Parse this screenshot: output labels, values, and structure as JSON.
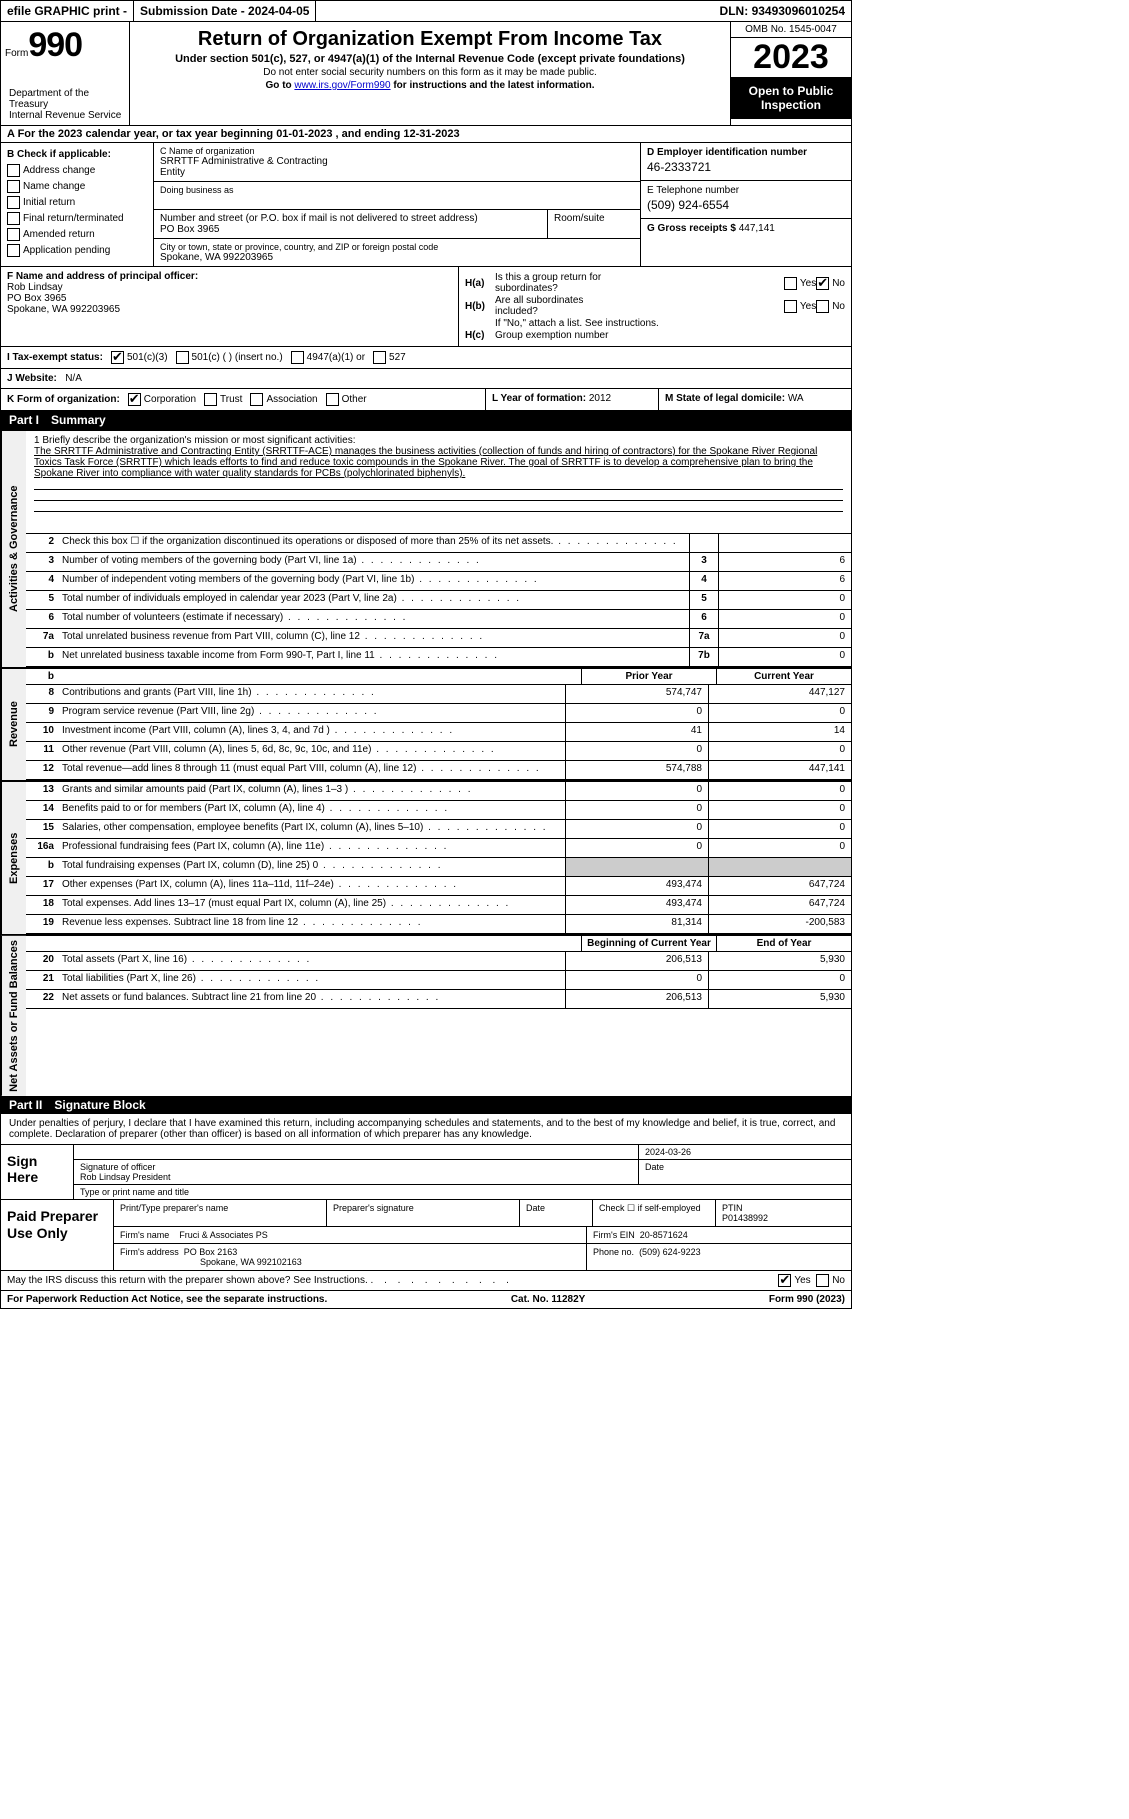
{
  "topbar": {
    "efile": "efile GRAPHIC print -",
    "submission_label": "Submission Date -",
    "submission_date": "2024-04-05",
    "dln_label": "DLN:",
    "dln": "93493096010254"
  },
  "header": {
    "form_prefix": "Form",
    "form_num": "990",
    "title": "Return of Organization Exempt From Income Tax",
    "subtitle": "Under section 501(c), 527, or 4947(a)(1) of the Internal Revenue Code (except private foundations)",
    "ssn_note": "Do not enter social security numbers on this form as it may be made public.",
    "goto_pre": "Go to ",
    "goto_link": "www.irs.gov/Form990",
    "goto_post": " for instructions and the latest information.",
    "omb": "OMB No. 1545-0047",
    "year": "2023",
    "open_public_l1": "Open to Public",
    "open_public_l2": "Inspection",
    "dept_l1": "Department of the Treasury",
    "dept_l2": "Internal Revenue Service"
  },
  "row_a": "A For the 2023 calendar year, or tax year beginning 01-01-2023   , and ending 12-31-2023",
  "col_b": {
    "header": "B Check if applicable:",
    "items": [
      "Address change",
      "Name change",
      "Initial return",
      "Final return/terminated",
      "Amended return",
      "Application pending"
    ]
  },
  "col_c": {
    "name_lbl": "C Name of organization",
    "name_l1": "SRRTTF Administrative & Contracting",
    "name_l2": "Entity",
    "dba_lbl": "Doing business as",
    "addr_lbl": "Number and street (or P.O. box if mail is not delivered to street address)",
    "addr": "PO Box 3965",
    "room_lbl": "Room/suite",
    "city_lbl": "City or town, state or province, country, and ZIP or foreign postal code",
    "city": "Spokane, WA  992203965"
  },
  "col_d": {
    "ein_lbl": "D Employer identification number",
    "ein": "46-2333721",
    "tel_lbl": "E Telephone number",
    "tel": "(509) 924-6554",
    "gross_lbl": "G Gross receipts $",
    "gross": "447,141"
  },
  "col_f": {
    "lbl": "F Name and address of principal officer:",
    "name": "Rob Lindsay",
    "addr": "PO Box 3965",
    "city": "Spokane, WA  992203965"
  },
  "col_h": {
    "ha_label": "H(a)",
    "ha_text1": "Is this a group return for",
    "ha_text2": "subordinates?",
    "hb_label": "H(b)",
    "hb_text1": "Are all subordinates",
    "hb_text2": "included?",
    "hb_note": "If \"No,\" attach a list. See instructions.",
    "hc_label": "H(c)",
    "hc_text": "Group exemption number",
    "yes": "Yes",
    "no": "No"
  },
  "status": {
    "i_lbl": "I   Tax-exempt status:",
    "opt1": "501(c)(3)",
    "opt2": "501(c) (  ) (insert no.)",
    "opt3": "4947(a)(1) or",
    "opt4": "527"
  },
  "website": {
    "lbl": "J   Website:",
    "val": "N/A"
  },
  "klm": {
    "k_lbl": "K Form of organization:",
    "k_opts": [
      "Corporation",
      "Trust",
      "Association",
      "Other"
    ],
    "l_lbl": "L Year of formation:",
    "l_val": "2012",
    "m_lbl": "M State of legal domicile:",
    "m_val": "WA"
  },
  "part1": {
    "hdr": "Part I",
    "title": "Summary"
  },
  "mission": {
    "lbl": "1   Briefly describe the organization's mission or most significant activities:",
    "text": "The SRRTTF Administrative and Contracting Entity (SRRTTF-ACE) manages the business activities (collection of funds and hiring of contractors) for the Spokane River Regional Toxics Task Force (SRRTTF) which leads efforts to find and reduce toxic compounds in the Spokane River. The goal of SRRTTF is to develop a comprehensive plan to bring the Spokane River into compliance with water quality standards for PCBs (polychlorinated biphenyls)."
  },
  "gov_lines": [
    {
      "n": "2",
      "d": "Check this box ☐ if the organization discontinued its operations or disposed of more than 25% of its net assets.",
      "box": "",
      "v": ""
    },
    {
      "n": "3",
      "d": "Number of voting members of the governing body (Part VI, line 1a)",
      "box": "3",
      "v": "6"
    },
    {
      "n": "4",
      "d": "Number of independent voting members of the governing body (Part VI, line 1b)",
      "box": "4",
      "v": "6"
    },
    {
      "n": "5",
      "d": "Total number of individuals employed in calendar year 2023 (Part V, line 2a)",
      "box": "5",
      "v": "0"
    },
    {
      "n": "6",
      "d": "Total number of volunteers (estimate if necessary)",
      "box": "6",
      "v": "0"
    },
    {
      "n": "7a",
      "d": "Total unrelated business revenue from Part VIII, column (C), line 12",
      "box": "7a",
      "v": "0"
    },
    {
      "n": "b",
      "d": "Net unrelated business taxable income from Form 990-T, Part I, line 11",
      "box": "7b",
      "v": "0"
    }
  ],
  "rev_hdr": {
    "prior": "Prior Year",
    "current": "Current Year"
  },
  "rev_lines": [
    {
      "n": "8",
      "d": "Contributions and grants (Part VIII, line 1h)",
      "p": "574,747",
      "c": "447,127"
    },
    {
      "n": "9",
      "d": "Program service revenue (Part VIII, line 2g)",
      "p": "0",
      "c": "0"
    },
    {
      "n": "10",
      "d": "Investment income (Part VIII, column (A), lines 3, 4, and 7d )",
      "p": "41",
      "c": "14"
    },
    {
      "n": "11",
      "d": "Other revenue (Part VIII, column (A), lines 5, 6d, 8c, 9c, 10c, and 11e)",
      "p": "0",
      "c": "0"
    },
    {
      "n": "12",
      "d": "Total revenue—add lines 8 through 11 (must equal Part VIII, column (A), line 12)",
      "p": "574,788",
      "c": "447,141"
    }
  ],
  "exp_lines": [
    {
      "n": "13",
      "d": "Grants and similar amounts paid (Part IX, column (A), lines 1–3 )",
      "p": "0",
      "c": "0"
    },
    {
      "n": "14",
      "d": "Benefits paid to or for members (Part IX, column (A), line 4)",
      "p": "0",
      "c": "0"
    },
    {
      "n": "15",
      "d": "Salaries, other compensation, employee benefits (Part IX, column (A), lines 5–10)",
      "p": "0",
      "c": "0"
    },
    {
      "n": "16a",
      "d": "Professional fundraising fees (Part IX, column (A), line 11e)",
      "p": "0",
      "c": "0"
    },
    {
      "n": "b",
      "d": "Total fundraising expenses (Part IX, column (D), line 25) 0",
      "p": "shaded",
      "c": "shaded"
    },
    {
      "n": "17",
      "d": "Other expenses (Part IX, column (A), lines 11a–11d, 11f–24e)",
      "p": "493,474",
      "c": "647,724"
    },
    {
      "n": "18",
      "d": "Total expenses. Add lines 13–17 (must equal Part IX, column (A), line 25)",
      "p": "493,474",
      "c": "647,724"
    },
    {
      "n": "19",
      "d": "Revenue less expenses. Subtract line 18 from line 12",
      "p": "81,314",
      "c": "-200,583"
    }
  ],
  "na_hdr": {
    "begin": "Beginning of Current Year",
    "end": "End of Year"
  },
  "na_lines": [
    {
      "n": "20",
      "d": "Total assets (Part X, line 16)",
      "p": "206,513",
      "c": "5,930"
    },
    {
      "n": "21",
      "d": "Total liabilities (Part X, line 26)",
      "p": "0",
      "c": "0"
    },
    {
      "n": "22",
      "d": "Net assets or fund balances. Subtract line 21 from line 20",
      "p": "206,513",
      "c": "5,930"
    }
  ],
  "part2": {
    "hdr": "Part II",
    "title": "Signature Block"
  },
  "sig": {
    "decl": "Under penalties of perjury, I declare that I have examined this return, including accompanying schedules and statements, and to the best of my knowledge and belief, it is true, correct, and complete. Declaration of preparer (other than officer) is based on all information of which preparer has any knowledge.",
    "sign_here": "Sign Here",
    "date": "2024-03-26",
    "sig_of_officer": "Signature of officer",
    "officer_name": "Rob Lindsay  President",
    "type_name": "Type or print name and title",
    "date_lbl": "Date"
  },
  "paid": {
    "lbl": "Paid Preparer Use Only",
    "col1": "Print/Type preparer's name",
    "col2": "Preparer's signature",
    "col3": "Date",
    "col4_pre": "Check ☐ if self-employed",
    "col5_lbl": "PTIN",
    "ptin": "P01438992",
    "firm_name_lbl": "Firm's name",
    "firm_name": "Fruci & Associates PS",
    "firm_ein_lbl": "Firm's EIN",
    "firm_ein": "20-8571624",
    "firm_addr_lbl": "Firm's address",
    "firm_addr_l1": "PO Box 2163",
    "firm_addr_l2": "Spokane, WA  992102163",
    "phone_lbl": "Phone no.",
    "phone": "(509) 624-9223"
  },
  "footer": {
    "discuss": "May the IRS discuss this return with the preparer shown above? See Instructions.",
    "yes": "Yes",
    "no": "No",
    "paperwork": "For Paperwork Reduction Act Notice, see the separate instructions.",
    "cat": "Cat. No. 11282Y",
    "form": "Form 990 (2023)"
  },
  "side_labels": {
    "gov": "Activities & Governance",
    "rev": "Revenue",
    "exp": "Expenses",
    "na": "Net Assets or Fund Balances"
  }
}
